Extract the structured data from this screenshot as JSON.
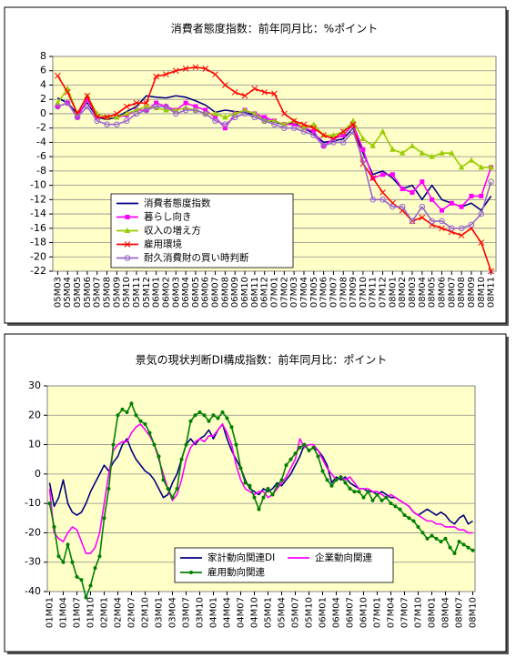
{
  "chart_data": [
    {
      "type": "line",
      "title": "消費者態度指数：前年同月比：%ポイント",
      "categories": [
        "05M03",
        "05M04",
        "05M05",
        "05M06",
        "05M07",
        "05M08",
        "05M09",
        "05M10",
        "05M11",
        "05M12",
        "06M01",
        "06M02",
        "06M03",
        "06M04",
        "06M05",
        "06M06",
        "06M07",
        "06M08",
        "06M09",
        "06M10",
        "06M11",
        "06M12",
        "07M01",
        "07M02",
        "07M03",
        "07M04",
        "07M05",
        "07M06",
        "07M07",
        "07M08",
        "07M09",
        "07M10",
        "07M11",
        "07M12",
        "08M01",
        "08M02",
        "08M03",
        "08M04",
        "08M05",
        "08M06",
        "08M07",
        "08M08",
        "08M09",
        "08M10",
        "08M11"
      ],
      "ylim": [
        -22,
        8
      ],
      "yticks": [
        -22,
        -20,
        -18,
        -16,
        -14,
        -12,
        -10,
        -8,
        -6,
        -4,
        -2,
        0,
        2,
        4,
        6,
        8
      ],
      "grid": true,
      "plot_background": "#ffffc8",
      "legend": "lower left",
      "series": [
        {
          "name": "消費者態度指数",
          "color": "#000080",
          "marker": "none",
          "values": [
            2.2,
            1.5,
            0,
            1.5,
            -0.5,
            -0.8,
            -0.5,
            0.3,
            1,
            2.5,
            2.3,
            2.2,
            2.5,
            2.3,
            1.8,
            1.2,
            0.2,
            0.5,
            0.3,
            0.2,
            -0.2,
            -0.8,
            -1.2,
            -1.5,
            -1.3,
            -2,
            -2.8,
            -4,
            -3.8,
            -3.5,
            -2,
            -5.5,
            -8.5,
            -8,
            -9,
            -10.5,
            -10,
            -12,
            -10,
            -12,
            -12.5,
            -13,
            -12.5,
            -13.5,
            -11.5
          ]
        },
        {
          "name": "暮らし向き",
          "color": "#ff00ff",
          "marker": "square",
          "values": [
            1,
            1.5,
            -0.5,
            2,
            -0.5,
            -0.5,
            -0.5,
            -0.2,
            0.5,
            0.5,
            1.5,
            1,
            0.5,
            1.5,
            1,
            0.5,
            -0.5,
            -2,
            0,
            0.5,
            0,
            -0.5,
            -1,
            -1.5,
            -1.5,
            -2,
            -2.5,
            -4.5,
            -3.5,
            -3,
            -1.5,
            -5,
            -9,
            -8.5,
            -8.5,
            -10.5,
            -11,
            -9.5,
            -12,
            -13.5,
            -12.5,
            -13,
            -11.5,
            -11.5,
            -7.5
          ]
        },
        {
          "name": "収入の増え方",
          "color": "#99cc00",
          "marker": "triangle",
          "values": [
            1.5,
            3.5,
            0,
            2.5,
            0,
            -0.5,
            -0.5,
            0,
            0.5,
            1,
            0.8,
            0.5,
            0.5,
            0.8,
            0.5,
            0,
            0,
            -0.5,
            0,
            0.5,
            0,
            -1,
            -1,
            -1.5,
            -1,
            -2,
            -1.5,
            -3,
            -3,
            -2.5,
            -1,
            -3.5,
            -4.5,
            -2.5,
            -5,
            -5.5,
            -4.5,
            -5.5,
            -6,
            -5.5,
            -5.5,
            -7.5,
            -6.5,
            -7.5,
            -7.5
          ]
        },
        {
          "name": "雇用環境",
          "color": "#ff0000",
          "marker": "x",
          "values": [
            5.3,
            3,
            0,
            2.5,
            -0.5,
            -0.5,
            0,
            1,
            1.5,
            1.5,
            5.2,
            5.5,
            6,
            6.3,
            6.5,
            6.3,
            5.5,
            4,
            3,
            2.5,
            3.5,
            3,
            2.8,
            0,
            -1,
            -1.5,
            -2,
            -3,
            -3.5,
            -2.5,
            -1.5,
            -7,
            -9,
            -11,
            -12.5,
            -13.5,
            -15,
            -14.5,
            -15.5,
            -16,
            -16.5,
            -17,
            -16,
            -18,
            -22
          ]
        },
        {
          "name": "耐久消費財の買い時判断",
          "color": "#9966cc",
          "marker": "circle",
          "values": [
            1,
            1.5,
            -0.5,
            1,
            -1,
            -1.5,
            -1.5,
            -1,
            0,
            0.5,
            1,
            1,
            0,
            0.5,
            0.5,
            0,
            -1,
            -1.5,
            -0.5,
            0,
            -0.5,
            -1,
            -1.5,
            -2,
            -2,
            -2.5,
            -3,
            -4.5,
            -4,
            -4,
            -2.5,
            -6.5,
            -12,
            -12,
            -13,
            -13,
            -15,
            -13,
            -15,
            -15,
            -16,
            -16,
            -15.5,
            -14,
            -9.5
          ]
        }
      ]
    },
    {
      "type": "line",
      "title": "景気の現状判断DI構成指数：前年同月比：ポイント",
      "categories": [
        "01M01",
        null,
        null,
        "01M04",
        null,
        null,
        "01M07",
        null,
        null,
        "01M10",
        null,
        null,
        "02M01",
        null,
        null,
        "02M04",
        null,
        null,
        "02M07",
        null,
        null,
        "02M10",
        null,
        null,
        "03M01",
        null,
        null,
        "03M04",
        null,
        null,
        "03M07",
        null,
        null,
        "03M10",
        null,
        null,
        "04M01",
        null,
        null,
        "04M04",
        null,
        null,
        "04M07",
        null,
        null,
        "04M10",
        null,
        null,
        "05M01",
        null,
        null,
        "05M04",
        null,
        null,
        "05M07",
        null,
        null,
        "05M10",
        null,
        null,
        "06M01",
        null,
        null,
        "06M04",
        null,
        null,
        "06M07",
        null,
        null,
        "06M10",
        null,
        null,
        "07M01",
        null,
        null,
        "07M04",
        null,
        null,
        "07M07",
        null,
        null,
        "07M10",
        null,
        null,
        "08M01",
        null,
        null,
        "08M04",
        null,
        null,
        "08M07",
        null,
        null,
        "08M10"
      ],
      "ylim": [
        -40,
        30
      ],
      "yticks": [
        -40,
        -30,
        -20,
        -10,
        0,
        10,
        20,
        30
      ],
      "grid": true,
      "plot_background": "#ffffc8",
      "legend": "lower center",
      "series": [
        {
          "name": "家計動向関連DI",
          "color": "#000080",
          "marker": "none",
          "values": [
            -3,
            -11,
            -8,
            -2,
            -10,
            -13,
            -14,
            -13,
            -10,
            -6,
            -3,
            0,
            3,
            1,
            4,
            6,
            10,
            12,
            8,
            5,
            3,
            1,
            0,
            -2,
            -5,
            -8,
            -7,
            -3,
            0,
            5,
            10,
            12,
            10,
            12,
            13,
            15,
            12,
            15,
            17,
            12,
            8,
            5,
            2,
            -2,
            -5,
            -6,
            -7,
            -5,
            -6,
            -5,
            -3,
            -4,
            -2,
            0,
            3,
            6,
            10,
            8,
            9,
            8,
            6,
            3,
            -3,
            -1,
            -2,
            -1,
            -3,
            -4,
            -5,
            -5,
            -6,
            -6,
            -7,
            -6,
            -7,
            -8,
            -8,
            -9,
            -10,
            -11,
            -13,
            -14,
            -13,
            -12,
            -13,
            -14,
            -13,
            -14,
            -16,
            -17,
            -15,
            -14,
            -17,
            -16
          ]
        },
        {
          "name": "企業動向関連",
          "color": "#ff00ff",
          "marker": "none",
          "values": [
            -5,
            -20,
            -22,
            -23,
            -20,
            -18,
            -19,
            -23,
            -27,
            -27,
            -25,
            -20,
            -10,
            0,
            8,
            10,
            11,
            11,
            14,
            16,
            17,
            15,
            13,
            10,
            5,
            0,
            -5,
            -9,
            -7,
            -2,
            5,
            9,
            11,
            12,
            11,
            13,
            13,
            15,
            17,
            14,
            10,
            3,
            -2,
            -5,
            -6,
            -7,
            -6,
            -6,
            -8,
            -7,
            -5,
            -3,
            -1,
            2,
            5,
            12,
            9,
            10,
            10,
            8,
            5,
            2,
            0,
            -2,
            -1,
            -2,
            -1,
            -3,
            -5,
            -5,
            -5,
            -6,
            -6,
            -7,
            -8,
            -7,
            -8,
            -9,
            -10,
            -11,
            -13,
            -14,
            -15,
            -16,
            -16,
            -17,
            -17,
            -18,
            -18,
            -18,
            -19,
            -19,
            -20,
            -20
          ]
        },
        {
          "name": "雇用動向関連",
          "color": "#008000",
          "marker": "dot",
          "values": [
            -10,
            -18,
            -28,
            -30,
            -24,
            -30,
            -35,
            -36,
            -42,
            -38,
            -32,
            -28,
            -15,
            -5,
            10,
            20,
            22,
            21,
            24,
            20,
            18,
            17,
            14,
            10,
            6,
            -2,
            -5,
            -8,
            -5,
            5,
            10,
            18,
            20,
            21,
            20,
            18,
            20,
            19,
            21,
            19,
            16,
            10,
            2,
            -3,
            -4,
            -8,
            -12,
            -8,
            -5,
            -7,
            -4,
            -2,
            3,
            5,
            7,
            9,
            10,
            8,
            9,
            6,
            1,
            -2,
            -4,
            -2,
            -1,
            -3,
            -5,
            -6,
            -6,
            -8,
            -6,
            -9,
            -7,
            -9,
            -8,
            -10,
            -11,
            -12,
            -14,
            -15,
            -16,
            -18,
            -20,
            -22,
            -21,
            -22,
            -23,
            -22,
            -25,
            -27,
            -23,
            -24,
            -25,
            -26
          ]
        }
      ]
    }
  ]
}
